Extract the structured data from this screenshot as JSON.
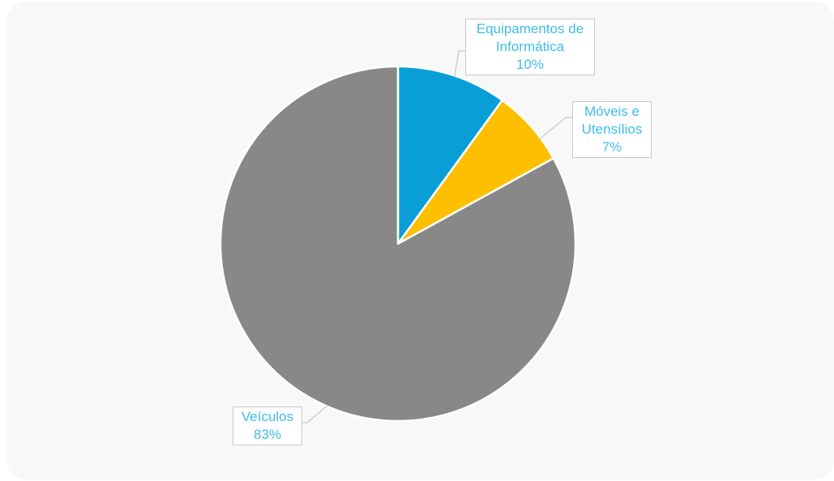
{
  "chart_data": {
    "type": "pie",
    "categories": [
      "Equipamentos de Informática",
      "Móveis e Utensílios",
      "Veículos"
    ],
    "values": [
      10,
      7,
      83
    ],
    "colors": [
      "#0a9ed7",
      "#fdbf00",
      "#888888"
    ],
    "label_color": "#3ebde8",
    "start_angle": "12 o'clock",
    "direction": "clockwise",
    "labels": [
      {
        "lines": [
          "Equipamentos de",
          "Informática"
        ],
        "percent": "10%"
      },
      {
        "lines": [
          "Móveis e",
          "Utensílios"
        ],
        "percent": "7%"
      },
      {
        "lines": [
          "Veículos"
        ],
        "percent": "83%"
      }
    ]
  }
}
